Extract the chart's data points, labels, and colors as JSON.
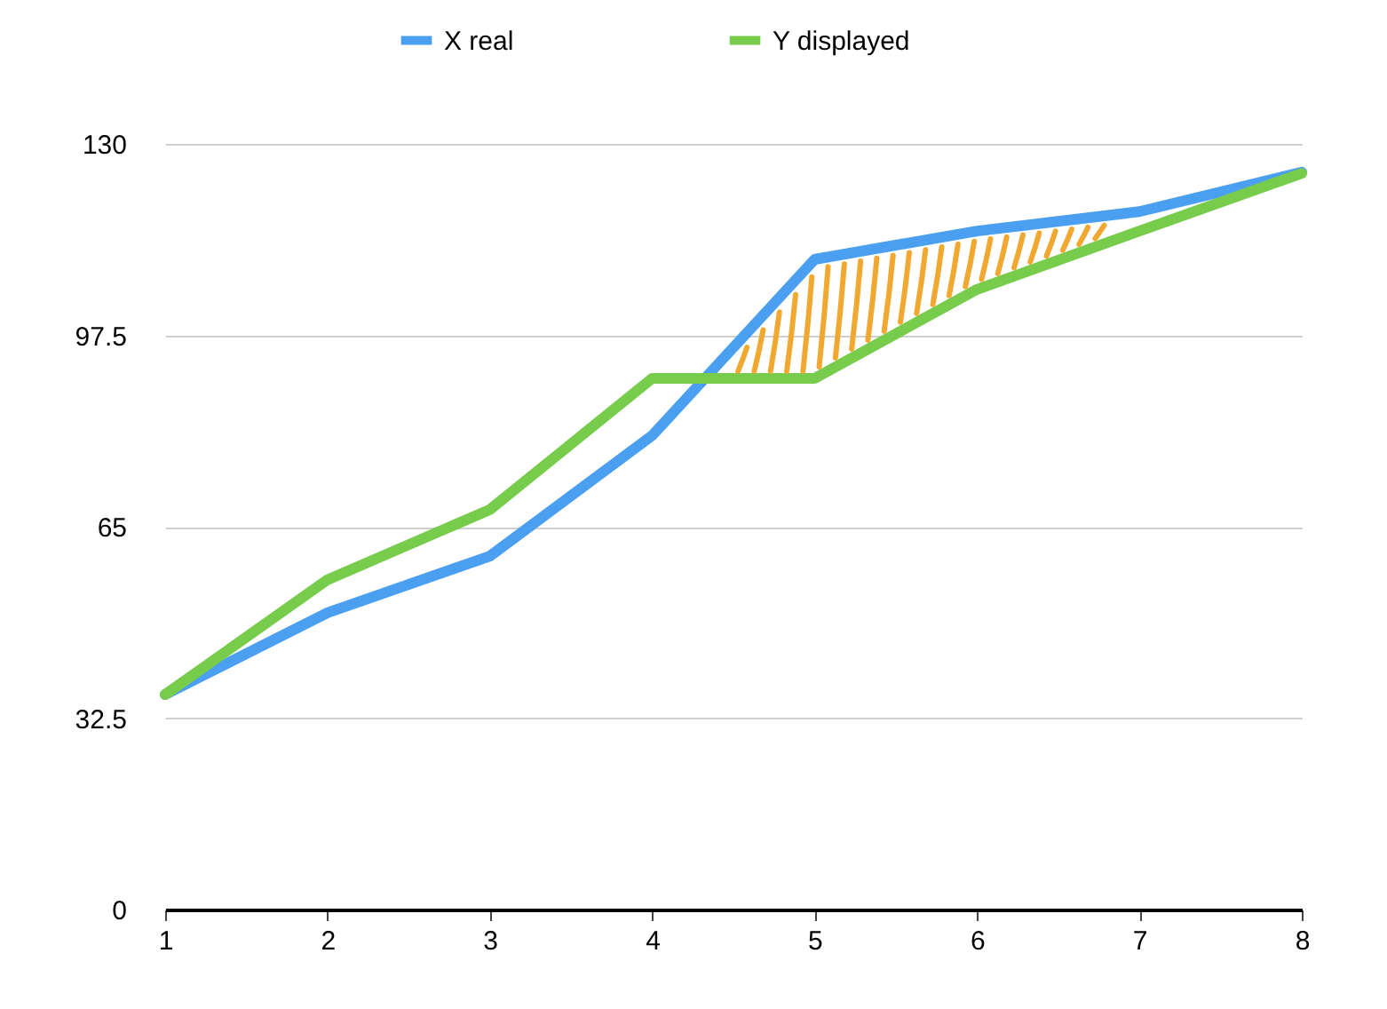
{
  "chart_data": {
    "type": "line",
    "x": [
      1,
      2,
      3,
      4,
      5,
      6,
      7,
      8
    ],
    "xlim": [
      1,
      8
    ],
    "xticks": [
      1,
      2,
      3,
      4,
      5,
      6,
      7,
      8
    ],
    "ylim": [
      0,
      130
    ],
    "yticks": [
      0,
      32.5,
      65,
      97.5,
      130
    ],
    "grid": "y",
    "legend": "top",
    "line_style": "solid",
    "series": [
      {
        "name": "X real",
        "color": "#4a9ff0",
        "values": [
          36.5,
          50.4,
          60,
          80.5,
          110.4,
          115.2,
          118.5,
          125.2
        ]
      },
      {
        "name": "Y displayed",
        "color": "#77cc4c",
        "values": [
          36.5,
          56,
          67.9,
          90.2,
          90.2,
          105.3,
          115.2,
          125
        ]
      }
    ]
  }
}
